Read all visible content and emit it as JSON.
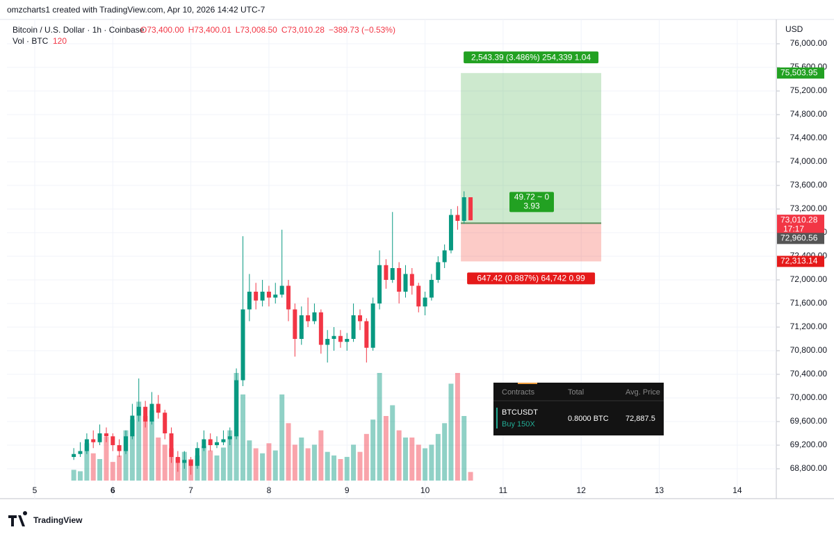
{
  "header": "omzcharts1 created with TradingView.com, Apr 10, 2026 14:42 UTC-7",
  "brand": "TradingView",
  "chart_data": {
    "type": "candlestick",
    "symbol": "Bitcoin / U.S. Dollar · 1h · Coinbase",
    "ohlc_legend": [
      "O73,400.00",
      "H73,400.01",
      "L73,008.50",
      "C73,010.28",
      "−389.73 (−0.53%)"
    ],
    "volume_legend": "Vol · BTC",
    "y_axis_label": "USD",
    "up_color": "#089981",
    "down_color": "#f23645",
    "grid": true,
    "xlim": [
      4.644,
      14.5
    ],
    "xticks": [
      5,
      6,
      7,
      8,
      9,
      10,
      11,
      12,
      13,
      14
    ],
    "ylim": [
      68600,
      76412
    ],
    "yticks": [
      {
        "value": 68800,
        "label": "68,800.00"
      },
      {
        "value": 69200,
        "label": "69,200.00"
      },
      {
        "value": 69600,
        "label": "69,600.00"
      },
      {
        "value": 70000,
        "label": "70,000.00"
      },
      {
        "value": 70400,
        "label": "70,400.00"
      },
      {
        "value": 70800,
        "label": "70,800.00"
      },
      {
        "value": 71200,
        "label": "71,200.00"
      },
      {
        "value": 71600,
        "label": "71,600.00"
      },
      {
        "value": 72000,
        "label": "72,000.00"
      },
      {
        "value": 72400,
        "label": "72,400.00"
      },
      {
        "value": 72800,
        "label": "72,800.00"
      },
      {
        "value": 73200,
        "label": "73,200.00"
      },
      {
        "value": 73600,
        "label": "73,600.00"
      },
      {
        "value": 74000,
        "label": "74,000.00"
      },
      {
        "value": 74400,
        "label": "74,400.00"
      },
      {
        "value": 74800,
        "label": "74,800.00"
      },
      {
        "value": 75200,
        "label": "75,200.00"
      },
      {
        "value": 75600,
        "label": "75,600.00"
      },
      {
        "value": 76000,
        "label": "76,000.00"
      }
    ],
    "x": [
      5.5,
      5.583,
      5.667,
      5.75,
      5.833,
      5.917,
      6,
      6.083,
      6.167,
      6.25,
      6.333,
      6.417,
      6.5,
      6.583,
      6.667,
      6.75,
      6.833,
      6.917,
      7,
      7.083,
      7.167,
      7.25,
      7.333,
      7.417,
      7.5,
      7.583,
      7.667,
      7.75,
      7.833,
      7.917,
      8,
      8.083,
      8.167,
      8.25,
      8.333,
      8.417,
      8.5,
      8.583,
      8.667,
      8.75,
      8.833,
      8.917,
      9,
      9.083,
      9.167,
      9.25,
      9.333,
      9.417,
      9.5,
      9.583,
      9.667,
      9.75,
      9.833,
      9.917,
      10,
      10.083,
      10.167,
      10.25,
      10.333,
      10.417,
      10.5,
      10.583
    ],
    "open": [
      69000,
      69050,
      69100,
      69300,
      69250,
      69400,
      69350,
      69200,
      69100,
      69350,
      69700,
      69850,
      69600,
      69900,
      69750,
      69400,
      69000,
      68900,
      68950,
      68850,
      69150,
      69300,
      69200,
      69250,
      69300,
      69350,
      70300,
      71500,
      71800,
      71650,
      71800,
      71700,
      71750,
      71900,
      71500,
      71000,
      71400,
      71300,
      71450,
      70900,
      71000,
      71050,
      70950,
      71000,
      71400,
      71300,
      70850,
      71600,
      72250,
      72000,
      72200,
      71800,
      72100,
      71900,
      71550,
      71700,
      72000,
      72300,
      72500,
      73100,
      73000,
      73400
    ],
    "high": [
      69150,
      69250,
      69400,
      69450,
      69550,
      69500,
      69400,
      69300,
      69450,
      69900,
      70330,
      69950,
      70100,
      70050,
      69800,
      69500,
      69100,
      69100,
      69000,
      69250,
      69450,
      69400,
      69350,
      69450,
      69500,
      70500,
      72740,
      72100,
      71950,
      72000,
      71900,
      71950,
      72850,
      72000,
      71600,
      71550,
      71700,
      71600,
      71500,
      71150,
      71200,
      71150,
      71100,
      71600,
      71500,
      71350,
      71700,
      72500,
      72350,
      73150,
      72300,
      72250,
      72200,
      71950,
      71800,
      72100,
      72400,
      72600,
      73200,
      73250,
      73500,
      73400.01
    ],
    "low": [
      68950,
      69000,
      69050,
      69150,
      69200,
      69250,
      69100,
      69000,
      69050,
      69300,
      69600,
      69500,
      69550,
      69650,
      69300,
      68900,
      68750,
      68800,
      68700,
      68800,
      69100,
      69100,
      69150,
      69200,
      69200,
      69300,
      70200,
      71300,
      71500,
      71550,
      71550,
      71600,
      71700,
      71300,
      70700,
      70900,
      71200,
      71250,
      70750,
      70600,
      70800,
      70850,
      70800,
      70950,
      71150,
      70600,
      70800,
      71500,
      71850,
      71950,
      71600,
      71700,
      71750,
      71450,
      71400,
      71650,
      71950,
      72200,
      72450,
      72850,
      72950,
      73008.5
    ],
    "close": [
      69050,
      69100,
      69300,
      69250,
      69400,
      69350,
      69200,
      69100,
      69350,
      69700,
      69850,
      69600,
      69900,
      69750,
      69400,
      69000,
      68900,
      68950,
      68850,
      69150,
      69300,
      69200,
      69250,
      69300,
      69350,
      70300,
      71500,
      71800,
      71650,
      71800,
      71700,
      71750,
      71900,
      71500,
      71000,
      71400,
      71300,
      71450,
      70900,
      71000,
      71050,
      70950,
      71000,
      71400,
      71300,
      70850,
      71600,
      72250,
      72000,
      72200,
      71800,
      72100,
      71900,
      71550,
      71700,
      72000,
      72300,
      72500,
      73100,
      73000,
      73400,
      73010.28
    ],
    "volume": [
      150,
      130,
      520,
      380,
      300,
      610,
      260,
      350,
      700,
      850,
      1100,
      900,
      980,
      600,
      500,
      450,
      320,
      400,
      300,
      350,
      480,
      420,
      350,
      460,
      700,
      1500,
      1200,
      560,
      450,
      380,
      520,
      420,
      1200,
      800,
      500,
      600,
      450,
      500,
      700,
      400,
      350,
      300,
      330,
      500,
      400,
      650,
      850,
      1500,
      900,
      1050,
      700,
      600,
      600,
      500,
      450,
      500,
      650,
      800,
      1350,
      1500,
      900,
      120
    ],
    "last_price": {
      "value": 73010.28,
      "label": "73,010.28"
    },
    "countdown": "17:17",
    "position": {
      "x_start": 10.459,
      "x_end": 12.257,
      "target": {
        "value": 75503.95,
        "label": "75,503.95"
      },
      "entry": {
        "value": 72960.56,
        "label": "72,960.56"
      },
      "stop": {
        "value": 72313.14,
        "label": "72,313.14"
      },
      "target_label": "2,543.39 (3.486%) 254,339 1.04",
      "stop_label": "647.42 (0.887%) 64,742 0.99",
      "center_label": [
        "49.72 ~ 0",
        "3.93"
      ]
    }
  },
  "panel": {
    "columns": [
      "Contracts",
      "Total",
      "Avg. Price"
    ],
    "symbol": "BTCUSDT",
    "side": "Buy 150X",
    "total": "0.8000 BTC",
    "avg_price": "72,887.5"
  }
}
